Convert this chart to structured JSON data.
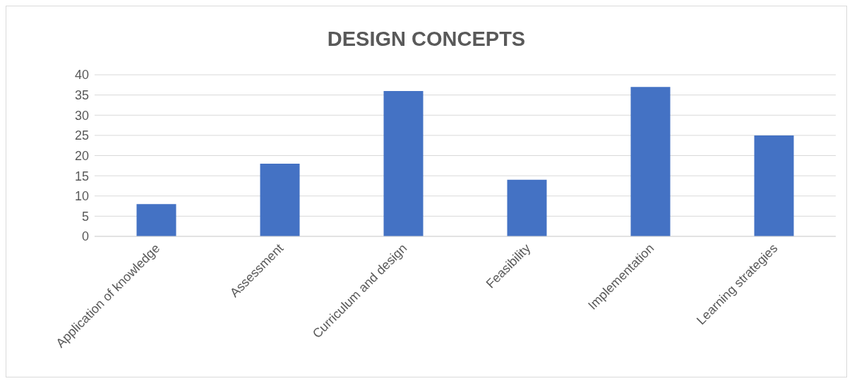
{
  "chart_data": {
    "type": "bar",
    "title": "DESIGN CONCEPTS",
    "categories": [
      "Application of knowledge",
      "Assessment",
      "Curriculum and design",
      "Feasibility",
      "Implementation",
      "Learning strategies"
    ],
    "values": [
      8,
      18,
      36,
      14,
      37,
      25
    ],
    "color": "#4472c4",
    "ylim": [
      0,
      40
    ],
    "yticks": [
      0,
      5,
      10,
      15,
      20,
      25,
      30,
      35,
      40
    ],
    "grid": "y"
  }
}
